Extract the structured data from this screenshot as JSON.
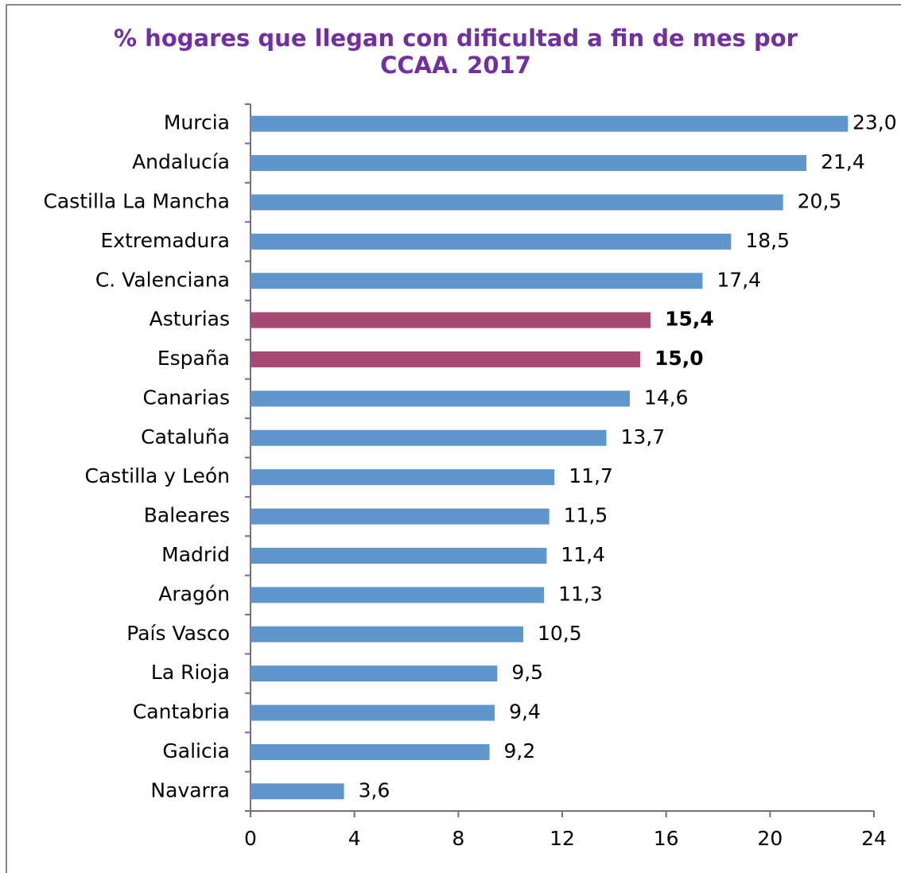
{
  "chart_data": {
    "type": "bar",
    "orientation": "horizontal",
    "title": [
      "% hogares que llegan con dificultad a fin de mes por",
      "CCAA. 2017"
    ],
    "categories": [
      "Murcia",
      "Andalucía",
      "Castilla La Mancha",
      "Extremadura",
      "C. Valenciana",
      "Asturias",
      "España",
      "Canarias",
      "Cataluña",
      "Castilla y León",
      "Baleares",
      "Madrid",
      "Aragón",
      "País Vasco",
      "La Rioja",
      "Cantabria",
      "Galicia",
      "Navarra"
    ],
    "values": [
      23.0,
      21.4,
      20.5,
      18.5,
      17.4,
      15.4,
      15.0,
      14.6,
      13.7,
      11.7,
      11.5,
      11.4,
      11.3,
      10.5,
      9.5,
      9.4,
      9.2,
      3.6
    ],
    "value_labels": [
      "23,0",
      "21,4",
      "20,5",
      "18,5",
      "17,4",
      "15,4",
      "15,0",
      "14,6",
      "13,7",
      "11,7",
      "11,5",
      "11,4",
      "11,3",
      "10,5",
      "9,5",
      "9,4",
      "9,2",
      "3,6"
    ],
    "color": "#5f96cb",
    "highlight_color": "#a84975",
    "colors": [
      "#5f96cb",
      "#5f96cb",
      "#5f96cb",
      "#5f96cb",
      "#5f96cb",
      "#a84975",
      "#a84975",
      "#5f96cb",
      "#5f96cb",
      "#5f96cb",
      "#5f96cb",
      "#5f96cb",
      "#5f96cb",
      "#5f96cb",
      "#5f96cb",
      "#5f96cb",
      "#5f96cb",
      "#5f96cb"
    ],
    "xlim": [
      0,
      24
    ],
    "xticks": [
      0,
      4,
      8,
      12,
      16,
      20,
      24
    ],
    "grid": false
  }
}
